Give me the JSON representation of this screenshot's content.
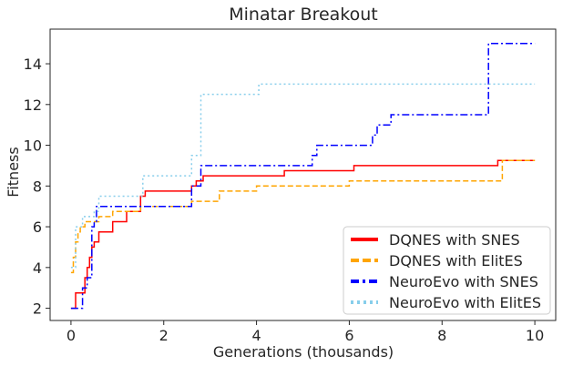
{
  "chart_data": {
    "type": "line",
    "title": "Minatar Breakout",
    "xlabel": "Generations (thousands)",
    "ylabel": "Fitness",
    "xlim": [
      -0.45,
      10.45
    ],
    "ylim": [
      1.4,
      15.7
    ],
    "xticks": [
      0,
      2,
      4,
      6,
      8,
      10
    ],
    "yticks": [
      2,
      4,
      6,
      8,
      10,
      12,
      14
    ],
    "grid": false,
    "legend_position": "lower-right",
    "series": [
      {
        "name": "DQNES with SNES",
        "color": "#ff0000",
        "style": "solid",
        "x": [
          0.0,
          0.1,
          0.2,
          0.3,
          0.35,
          0.4,
          0.45,
          0.5,
          0.55,
          0.6,
          0.75,
          0.9,
          1.05,
          1.2,
          1.3,
          1.5,
          1.6,
          1.7,
          2.0,
          2.6,
          2.7,
          2.85,
          3.2,
          4.0,
          4.6,
          5.5,
          6.1,
          7.0,
          9.2,
          10.0
        ],
        "y": [
          2.0,
          2.75,
          2.75,
          3.5,
          4.0,
          4.5,
          5.0,
          5.25,
          5.25,
          5.75,
          5.75,
          6.25,
          6.25,
          6.75,
          6.75,
          7.5,
          7.75,
          7.75,
          7.75,
          8.0,
          8.25,
          8.5,
          8.5,
          8.5,
          8.75,
          8.75,
          9.0,
          9.0,
          9.25,
          9.25
        ],
        "linewidth": 1.5
      },
      {
        "name": "DQNES with ElitES",
        "color": "#ffa500",
        "style": "dashed",
        "x": [
          0.0,
          0.05,
          0.1,
          0.15,
          0.2,
          0.3,
          0.6,
          0.9,
          1.5,
          1.6,
          2.6,
          3.2,
          4.0,
          4.2,
          6.0,
          6.05,
          9.3,
          10.0
        ],
        "y": [
          3.75,
          4.5,
          5.25,
          5.75,
          6.0,
          6.25,
          6.5,
          6.75,
          7.0,
          7.0,
          7.25,
          7.75,
          8.0,
          8.0,
          8.25,
          8.25,
          9.25,
          9.25
        ],
        "linewidth": 1.5
      },
      {
        "name": "NeuroEvo with SNES",
        "color": "#0000ff",
        "style": "dashdot",
        "x": [
          0.0,
          0.15,
          0.25,
          0.35,
          0.45,
          0.5,
          0.55,
          1.0,
          1.5,
          2.5,
          2.6,
          2.8,
          4.0,
          5.2,
          5.3,
          5.5,
          6.5,
          6.6,
          6.7,
          6.9,
          9.0,
          10.0
        ],
        "y": [
          2.0,
          2.0,
          3.0,
          3.5,
          6.0,
          6.25,
          7.0,
          7.0,
          7.0,
          7.0,
          8.0,
          9.0,
          9.0,
          9.5,
          10.0,
          10.0,
          10.5,
          11.0,
          11.0,
          11.5,
          15.0,
          15.0
        ],
        "linewidth": 1.5
      },
      {
        "name": "NeuroEvo with ElitES",
        "color": "#87ceeb",
        "style": "dotted",
        "x": [
          0.0,
          0.1,
          0.25,
          0.5,
          0.6,
          1.0,
          1.55,
          2.6,
          2.8,
          4.05,
          5.0,
          10.0
        ],
        "y": [
          4.0,
          6.0,
          6.5,
          6.75,
          7.5,
          7.5,
          8.5,
          9.5,
          12.5,
          13.0,
          13.0,
          13.0
        ],
        "linewidth": 1.5
      }
    ]
  }
}
